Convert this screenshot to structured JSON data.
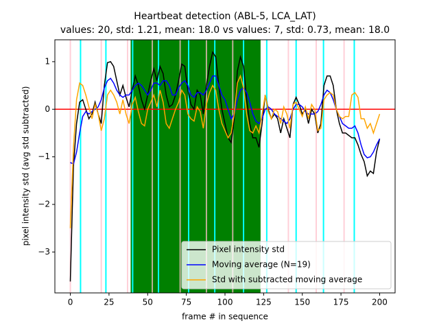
{
  "chart_data": {
    "type": "line",
    "title": "Heartbeat detection (ABL-5, LCA_LAT)",
    "subtitle": "values: 20, std: 1.21, mean: 18.0 vs values: 7, std: 0.73, mean: 18.0",
    "x_label": "frame # in sequence",
    "y_label": "pixel intensity std (avg std subtracted)",
    "xlim": [
      -10,
      210
    ],
    "ylim": [
      -3.86,
      1.46
    ],
    "xticks": [
      0,
      25,
      50,
      75,
      100,
      125,
      150,
      175,
      200
    ],
    "yticks": [
      {
        "value": -3,
        "label": "−3"
      },
      {
        "value": -2,
        "label": "−2"
      },
      {
        "value": -1,
        "label": "−1"
      },
      0,
      1
    ],
    "legend": "lower right",
    "span": {
      "x": [
        39,
        123
      ],
      "color": "green"
    },
    "hline": {
      "y": 0,
      "color": "red"
    },
    "vertical_lines": [
      {
        "color": "pink",
        "x": [
          0,
          20,
          37,
          53,
          71,
          88,
          105,
          141,
          159,
          177
        ]
      },
      {
        "color": "cyan",
        "x": [
          6.6,
          23,
          40.3,
          57,
          76.5,
          93.4,
          112,
          127,
          146,
          163.7,
          183.6
        ]
      }
    ],
    "x": [
      0,
      2,
      4,
      6,
      8,
      10,
      12,
      14,
      16,
      18,
      20,
      22,
      24,
      26,
      28,
      30,
      32,
      34,
      36,
      38,
      40,
      42,
      44,
      46,
      48,
      50,
      52,
      54,
      56,
      58,
      60,
      62,
      64,
      66,
      68,
      70,
      72,
      74,
      76,
      78,
      80,
      82,
      84,
      86,
      88,
      90,
      92,
      94,
      96,
      98,
      100,
      102,
      104,
      106,
      108,
      110,
      112,
      114,
      116,
      118,
      120,
      122,
      124,
      126,
      128,
      130,
      132,
      134,
      136,
      138,
      140,
      142,
      144,
      146,
      148,
      150,
      152,
      154,
      156,
      158,
      160,
      162,
      164,
      166,
      168,
      170,
      172,
      174,
      176,
      178,
      180,
      182,
      184,
      186,
      188,
      190,
      192,
      194,
      196,
      198,
      200
    ],
    "series": [
      {
        "name": "Pixel intensity std",
        "color": "black",
        "values": [
          -3.62,
          -1.2,
          -0.3,
          0.15,
          0.2,
          0.0,
          -0.2,
          -0.1,
          0.15,
          -0.1,
          -0.3,
          0.5,
          0.98,
          1.0,
          0.9,
          0.6,
          0.3,
          0.5,
          0.25,
          0.05,
          0.4,
          0.7,
          0.5,
          0.2,
          0.0,
          0.3,
          0.6,
          0.85,
          0.6,
          0.9,
          0.75,
          0.3,
          0.05,
          0.1,
          0.3,
          0.6,
          0.95,
          0.9,
          0.4,
          0.1,
          0.0,
          0.4,
          0.3,
          -0.1,
          0.5,
          0.9,
          1.2,
          1.1,
          0.5,
          0.0,
          -0.3,
          -0.6,
          -0.7,
          -0.2,
          0.8,
          1.1,
          0.9,
          0.2,
          -0.3,
          -0.6,
          -0.6,
          -0.8,
          -0.3,
          0.3,
          0.0,
          -0.2,
          -0.1,
          -0.2,
          -0.5,
          -0.2,
          -0.4,
          -0.6,
          0.1,
          0.25,
          0.1,
          -0.1,
          0.0,
          -0.3,
          0.0,
          -0.1,
          -0.5,
          -0.3,
          0.5,
          0.7,
          0.7,
          0.5,
          0.0,
          -0.3,
          -0.5,
          -0.5,
          -0.55,
          -0.6,
          -0.6,
          -0.75,
          -0.95,
          -1.1,
          -1.4,
          -1.3,
          -1.35,
          -0.9,
          -0.62
        ]
      },
      {
        "name": "Moving average (N=19)",
        "color": "blue",
        "values": [
          -1.12,
          -1.15,
          -0.9,
          -0.5,
          -0.15,
          -0.05,
          -0.1,
          -0.05,
          0.0,
          0.05,
          0.2,
          0.45,
          0.6,
          0.65,
          0.55,
          0.4,
          0.3,
          0.25,
          0.3,
          0.3,
          0.4,
          0.5,
          0.55,
          0.5,
          0.4,
          0.3,
          0.4,
          0.55,
          0.55,
          0.5,
          0.6,
          0.6,
          0.5,
          0.3,
          0.3,
          0.45,
          0.55,
          0.6,
          0.5,
          0.3,
          0.25,
          0.35,
          0.35,
          0.3,
          0.4,
          0.55,
          0.7,
          0.7,
          0.5,
          0.3,
          0.2,
          0.0,
          -0.2,
          -0.1,
          0.2,
          0.4,
          0.45,
          0.35,
          0.15,
          -0.1,
          -0.25,
          -0.3,
          -0.2,
          0.0,
          0.05,
          0.0,
          -0.1,
          -0.15,
          -0.2,
          -0.25,
          -0.3,
          -0.2,
          0.0,
          0.1,
          0.1,
          0.05,
          -0.05,
          -0.1,
          -0.1,
          -0.1,
          -0.05,
          0.1,
          0.3,
          0.4,
          0.35,
          0.2,
          0.0,
          -0.15,
          -0.3,
          -0.35,
          -0.4,
          -0.4,
          -0.35,
          -0.5,
          -0.75,
          -0.95,
          -1.02,
          -1.0,
          -0.9,
          -0.75,
          -0.62
        ]
      },
      {
        "name": "Std with subtracted moving average",
        "color": "orange",
        "values": [
          -2.5,
          -0.8,
          0.2,
          0.55,
          0.5,
          0.3,
          0.05,
          -0.2,
          0.1,
          -0.1,
          -0.45,
          -0.2,
          0.3,
          0.4,
          0.3,
          0.15,
          -0.1,
          0.2,
          -0.1,
          -0.3,
          0.1,
          0.25,
          -0.05,
          -0.3,
          -0.35,
          0.0,
          0.15,
          0.3,
          0.05,
          0.4,
          0.15,
          -0.3,
          -0.4,
          -0.2,
          0.0,
          0.15,
          0.4,
          0.3,
          -0.1,
          -0.2,
          -0.25,
          0.05,
          -0.05,
          -0.4,
          0.1,
          0.35,
          0.5,
          0.4,
          0.0,
          -0.3,
          -0.45,
          -0.6,
          -0.5,
          -0.1,
          0.55,
          0.7,
          0.45,
          -0.1,
          -0.45,
          -0.5,
          -0.35,
          -0.5,
          -0.1,
          0.3,
          -0.05,
          -0.2,
          0.0,
          -0.05,
          -0.3,
          0.05,
          -0.1,
          -0.4,
          0.1,
          0.15,
          0.0,
          -0.15,
          0.05,
          -0.2,
          0.1,
          0.0,
          -0.45,
          -0.4,
          0.2,
          0.3,
          0.35,
          0.3,
          0.0,
          -0.15,
          -0.2,
          -0.15,
          -0.15,
          0.3,
          0.35,
          0.25,
          -0.2,
          -0.2,
          -0.4,
          -0.3,
          -0.5,
          -0.3,
          -0.1
        ]
      }
    ]
  }
}
